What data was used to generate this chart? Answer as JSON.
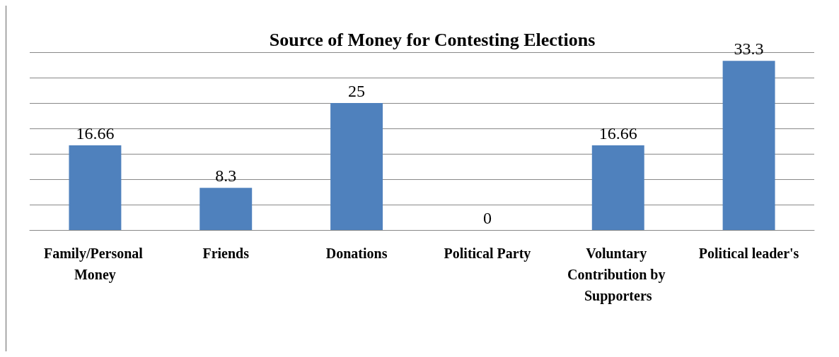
{
  "chart_data": {
    "type": "bar",
    "title": "Source of Money for Contesting Elections",
    "categories": [
      "Family/Personal Money",
      "Friends",
      "Donations",
      "Political Party",
      "Voluntary Contribution by Supporters",
      "Political leader's"
    ],
    "values": [
      16.66,
      8.3,
      25,
      0,
      16.66,
      33.3
    ],
    "color": "#4f81bd",
    "ylim": [
      0,
      35
    ],
    "yticks": [
      0,
      5,
      10,
      15,
      20,
      25,
      30,
      35
    ],
    "grid": "y",
    "tick_labels": "x",
    "data_labels": true
  }
}
